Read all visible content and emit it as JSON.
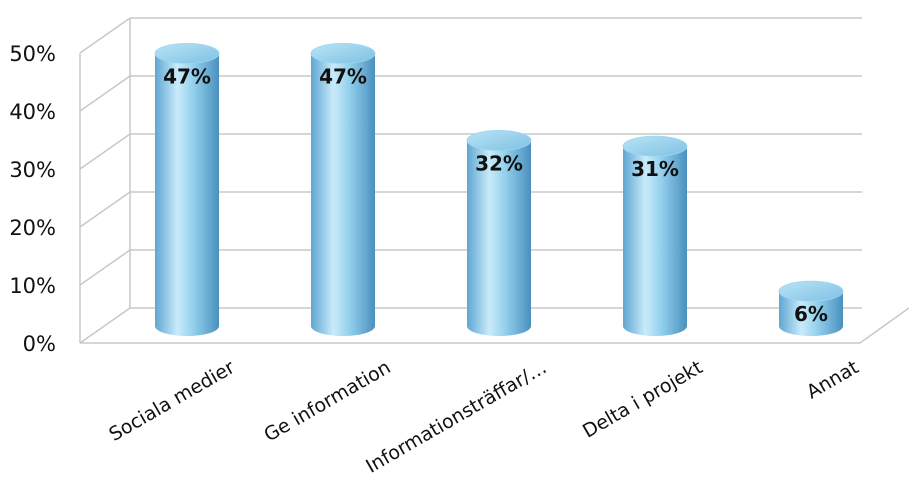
{
  "chart_data": {
    "type": "bar",
    "style": "3d-cylinder",
    "categories": [
      "Sociala medier",
      "Ge information",
      "Informationsträffar/…",
      "Delta i projekt",
      "Annat"
    ],
    "values": [
      47,
      47,
      32,
      31,
      6
    ],
    "data_labels": [
      "47%",
      "47%",
      "32%",
      "31%",
      "6%"
    ],
    "y_ticks": [
      "0%",
      "10%",
      "20%",
      "30%",
      "40%",
      "50%"
    ],
    "ylim": [
      0,
      50
    ],
    "grid": true,
    "legend": "none",
    "colors": {
      "bar_light": "#d6f0fc",
      "bar_mid": "#8fcdea",
      "bar_dark": "#4f97c4",
      "bar_top": "#a8dcf3",
      "grid": "#c8c8c8"
    }
  }
}
